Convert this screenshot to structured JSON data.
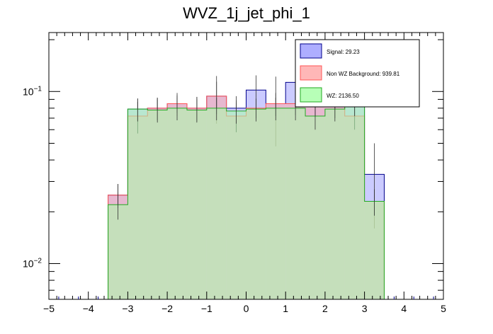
{
  "chart_data": {
    "type": "histogram",
    "title": "WVZ_1j_jet_phi_1",
    "xlabel": "",
    "ylabel": "",
    "xlim": [
      -5,
      5
    ],
    "ylim": [
      0.0062,
      0.22
    ],
    "yscale": "log",
    "x_ticks": [
      -5,
      -4,
      -3,
      -2,
      -1,
      0,
      1,
      2,
      3,
      4,
      5
    ],
    "y_tick_labels": [
      {
        "value": 0.1,
        "base": "10",
        "exp": "−1"
      },
      {
        "value": 0.01,
        "base": "10",
        "exp": "−2"
      }
    ],
    "bins": [
      -3.5,
      -3.0,
      -2.5,
      -2.0,
      -1.5,
      -1.0,
      -0.5,
      0.0,
      0.5,
      1.0,
      1.5,
      2.0,
      2.5,
      3.0,
      3.5
    ],
    "series": [
      {
        "name": "Signal",
        "legend": "Signal: 29.23",
        "color": "#a0a0ff",
        "edge": "#00008b",
        "values": [
          0.025,
          0.079,
          0.08,
          0.085,
          0.08,
          0.094,
          0.08,
          0.102,
          0.085,
          0.113,
          0.085,
          0.083,
          0.084,
          0.033
        ],
        "errors": [
          0.004,
          0.012,
          0.012,
          0.013,
          0.013,
          0.029,
          0.014,
          0.022,
          0.037,
          0.03,
          0.014,
          0.013,
          0.013,
          0.017
        ]
      },
      {
        "name": "Non WZ Background",
        "legend": "Non WZ Background: 939.81",
        "color": "#ffaaaa",
        "edge": "#ff5555",
        "values": [
          0.025,
          0.072,
          0.08,
          0.085,
          0.08,
          0.094,
          0.072,
          0.08,
          0.085,
          0.085,
          0.083,
          0.083,
          0.072,
          0.023
        ],
        "errors": [
          0.004,
          0.015,
          0.012,
          0.01,
          0.013,
          0.02,
          0.014,
          0.01,
          0.013,
          0.012,
          0.012,
          0.013,
          0.012,
          0.004
        ]
      },
      {
        "name": "WZ",
        "legend": "WZ: 2136.50",
        "color": "#aaffaa",
        "edge": "#22aa22",
        "values": [
          0.022,
          0.079,
          0.078,
          0.08,
          0.078,
          0.08,
          0.077,
          0.079,
          0.08,
          0.08,
          0.072,
          0.079,
          0.084,
          0.023
        ],
        "errors": [
          0.004,
          0.012,
          0.012,
          0.012,
          0.012,
          0.012,
          0.012,
          0.012,
          0.012,
          0.012,
          0.012,
          0.012,
          0.012,
          0.004
        ]
      }
    ],
    "legend_position": "top-right"
  }
}
